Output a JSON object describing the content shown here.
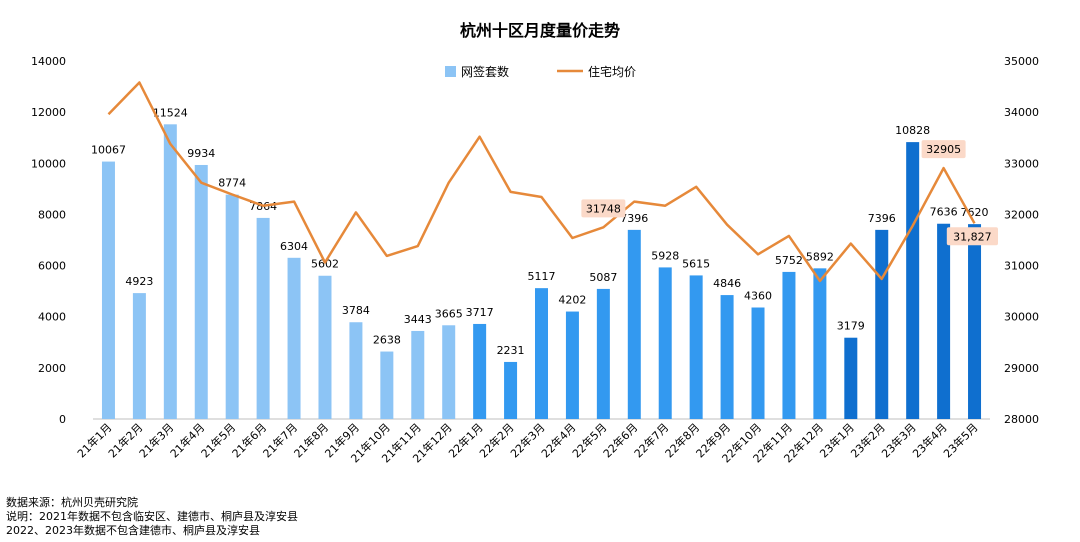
{
  "chart_data": {
    "type": "bar",
    "title": "杭州十区月度量价走势",
    "categories": [
      "21年1月",
      "21年2月",
      "21年3月",
      "21年4月",
      "21年5月",
      "21年6月",
      "21年7月",
      "21年8月",
      "21年9月",
      "21年10月",
      "21年11月",
      "21年12月",
      "22年1月",
      "22年2月",
      "22年3月",
      "22年4月",
      "22年5月",
      "22年6月",
      "22年7月",
      "22年8月",
      "22年9月",
      "22年10月",
      "22年11月",
      "22年12月",
      "23年1月",
      "23年2月",
      "23年3月",
      "23年4月",
      "23年5月"
    ],
    "series": [
      {
        "name": "网签套数",
        "type": "bar",
        "axis": "left",
        "values": [
          10067,
          4923,
          11524,
          9934,
          8774,
          7864,
          6304,
          5602,
          3784,
          2638,
          3443,
          3665,
          3717,
          2231,
          5117,
          4202,
          5087,
          7396,
          5928,
          5615,
          4846,
          4360,
          5752,
          5892,
          3179,
          7396,
          10828,
          7636,
          7620
        ],
        "labels": [
          "10067",
          "4923",
          "11524",
          "9934",
          "8774",
          "7864",
          "6304",
          "5602",
          "3784",
          "2638",
          "3443",
          "3665",
          "3717",
          "2231",
          "5117",
          "4202",
          "5087",
          "7396",
          "5928",
          "5615",
          "4846",
          "4360",
          "5752",
          "5892",
          "3179",
          "7396",
          "10828",
          "7636",
          "7620"
        ],
        "colors_by_year": {
          "21": "#8cc4f5",
          "22": "#3399f0",
          "23": "#0f6fcf"
        }
      },
      {
        "name": "住宅均价",
        "type": "line",
        "axis": "right",
        "color": "#e6893a",
        "values": [
          33960,
          34580,
          33380,
          32620,
          32390,
          32170,
          32250,
          31060,
          32040,
          31190,
          31380,
          32620,
          33520,
          32440,
          32340,
          31540,
          31748,
          32250,
          32170,
          32540,
          31800,
          31220,
          31580,
          30700,
          31430,
          30740,
          31780,
          32905,
          31827
        ]
      }
    ],
    "callouts": [
      {
        "index": 16,
        "text": "31748"
      },
      {
        "index": 27,
        "text": "32905"
      },
      {
        "index": 28,
        "text": "31,827"
      }
    ],
    "ylim_left": [
      0,
      14000
    ],
    "yticks_left": [
      0,
      2000,
      4000,
      6000,
      8000,
      10000,
      12000,
      14000
    ],
    "ylim_right": [
      28000,
      35000
    ],
    "yticks_right": [
      28000,
      29000,
      30000,
      31000,
      32000,
      33000,
      34000,
      35000
    ],
    "grid": false,
    "legend_position": "top-center"
  },
  "footer": {
    "line1": "数据来源：杭州贝壳研究院",
    "line2": "说明：2021年数据不包含临安区、建德市、桐庐县及淳安县",
    "line3": "2022、2023年数据不包含建德市、桐庐县及淳安县"
  }
}
